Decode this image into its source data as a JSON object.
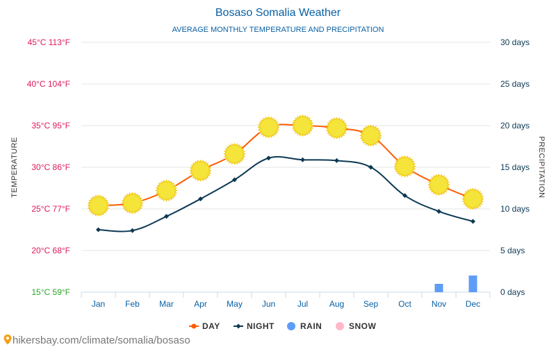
{
  "page": {
    "footer_text": "hikersbay.com/climate/somalia/bosaso"
  },
  "chart_data": {
    "type": "line",
    "title": "Bosaso Somalia Weather",
    "subtitle": "AVERAGE MONTHLY TEMPERATURE AND PRECIPITATION",
    "left_axis_title": "TEMPERATURE",
    "right_axis_title": "PRECIPITATION",
    "categories": [
      "Jan",
      "Feb",
      "Mar",
      "Apr",
      "May",
      "Jun",
      "Jul",
      "Aug",
      "Sep",
      "Oct",
      "Nov",
      "Dec"
    ],
    "left_ticks": [
      {
        "value": 15,
        "label": "15°C 59°F"
      },
      {
        "value": 20,
        "label": "20°C 68°F"
      },
      {
        "value": 25,
        "label": "25°C 77°F"
      },
      {
        "value": 30,
        "label": "30°C 86°F"
      },
      {
        "value": 35,
        "label": "35°C 95°F"
      },
      {
        "value": 40,
        "label": "40°C 104°F"
      },
      {
        "value": 45,
        "label": "45°C 113°F"
      }
    ],
    "right_ticks": [
      {
        "value": 0,
        "label": "0 days"
      },
      {
        "value": 5,
        "label": "5 days"
      },
      {
        "value": 10,
        "label": "10 days"
      },
      {
        "value": 15,
        "label": "15 days"
      },
      {
        "value": 20,
        "label": "20 days"
      },
      {
        "value": 25,
        "label": "25 days"
      },
      {
        "value": 30,
        "label": "30 days"
      }
    ],
    "ylim_left": [
      15,
      45
    ],
    "ylim_right": [
      0,
      30
    ],
    "grid": true,
    "legend_position": "bottom",
    "series": [
      {
        "name": "DAY",
        "axis": "left",
        "color": "#ff5a00",
        "marker": "sun-icon",
        "values": [
          25.4,
          25.7,
          27.2,
          29.6,
          31.6,
          34.8,
          35.0,
          34.7,
          33.8,
          30.1,
          27.9,
          26.2
        ]
      },
      {
        "name": "NIGHT",
        "axis": "left",
        "color": "#0d3954",
        "marker": "diamond",
        "values": [
          22.5,
          22.4,
          24.1,
          26.2,
          28.5,
          31.1,
          30.9,
          30.8,
          30.0,
          26.6,
          24.7,
          23.5
        ]
      },
      {
        "name": "RAIN",
        "axis": "right",
        "color": "#5e9df7",
        "type": "bar",
        "values": [
          0,
          0,
          0,
          0,
          0,
          0,
          0,
          0,
          0,
          0,
          1,
          2
        ]
      },
      {
        "name": "SNOW",
        "axis": "right",
        "color": "#ffb8c8",
        "type": "bar",
        "values": [
          0,
          0,
          0,
          0,
          0,
          0,
          0,
          0,
          0,
          0,
          0,
          0
        ]
      }
    ],
    "colors": {
      "title": "#075fa3",
      "left_tick": "#e0165d",
      "left_tick_lowest": "#2aa52a",
      "right_tick": "#0d3954",
      "category_tick": "#075fa3",
      "axis_title": "#333333",
      "grid": "#e6e6e6",
      "sun_fill": "#f5e43a",
      "sun_stroke": "#f3c514"
    },
    "footer_icon": "location-pin-icon"
  }
}
